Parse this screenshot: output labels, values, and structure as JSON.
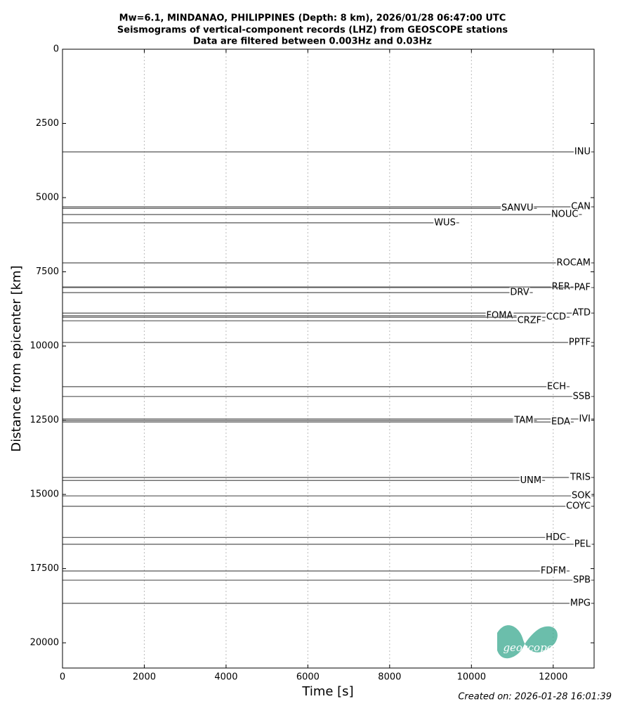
{
  "chart_data": {
    "type": "seismogram",
    "title": [
      "Mw=6.1, MINDANAO, PHILIPPINES (Depth: 8 km), 2026/01/28 06:47:00 UTC",
      "Seismograms of vertical-component records (LHZ) from GEOSCOPE stations",
      "Data are filtered between 0.003Hz and 0.03Hz"
    ],
    "xlabel": "Time [s]",
    "ylabel": "Distance from epicenter [km]",
    "xlim": [
      0,
      13000
    ],
    "ylim": [
      0,
      20850
    ],
    "y_inverted": true,
    "xticks": [
      0,
      2000,
      4000,
      6000,
      8000,
      10000,
      12000
    ],
    "yticks": [
      0,
      2500,
      5000,
      7500,
      10000,
      12500,
      15000,
      17500,
      20000
    ],
    "grid": true,
    "color": "#555555",
    "stations": [
      {
        "name": "INU",
        "distance": 3460,
        "t_end": 13000
      },
      {
        "name": "CAN",
        "distance": 5310,
        "t_end": 13000
      },
      {
        "name": "SANVU",
        "distance": 5360,
        "t_end": 11600
      },
      {
        "name": "NOUC",
        "distance": 5570,
        "t_end": 12700
      },
      {
        "name": "WUS",
        "distance": 5850,
        "t_end": 9700
      },
      {
        "name": "ROCAM",
        "distance": 7200,
        "t_end": 13000
      },
      {
        "name": "RER",
        "distance": 8010,
        "t_end": 12500
      },
      {
        "name": "PAF",
        "distance": 8030,
        "t_end": 13000
      },
      {
        "name": "DRV",
        "distance": 8200,
        "t_end": 11500
      },
      {
        "name": "ATD",
        "distance": 8890,
        "t_end": 13000
      },
      {
        "name": "FOMA",
        "distance": 8980,
        "t_end": 11100
      },
      {
        "name": "CCD",
        "distance": 9030,
        "t_end": 12400
      },
      {
        "name": "CRZF",
        "distance": 9150,
        "t_end": 11800
      },
      {
        "name": "PPTF",
        "distance": 9880,
        "t_end": 13000
      },
      {
        "name": "ECH",
        "distance": 11370,
        "t_end": 12400
      },
      {
        "name": "SSB",
        "distance": 11700,
        "t_end": 13000
      },
      {
        "name": "IVI",
        "distance": 12460,
        "t_end": 13000
      },
      {
        "name": "EDA",
        "distance": 12560,
        "t_end": 12500
      },
      {
        "name": "TAM",
        "distance": 12510,
        "t_end": 11600
      },
      {
        "name": "TRIS",
        "distance": 14430,
        "t_end": 13000
      },
      {
        "name": "UNM",
        "distance": 14530,
        "t_end": 11800
      },
      {
        "name": "SOK",
        "distance": 15050,
        "t_end": 13000
      },
      {
        "name": "COYC",
        "distance": 15400,
        "t_end": 13000
      },
      {
        "name": "HDC",
        "distance": 16450,
        "t_end": 12400
      },
      {
        "name": "PEL",
        "distance": 16680,
        "t_end": 13000
      },
      {
        "name": "FDFM",
        "distance": 17580,
        "t_end": 12400
      },
      {
        "name": "SPB",
        "distance": 17890,
        "t_end": 13000
      },
      {
        "name": "MPG",
        "distance": 18670,
        "t_end": 13000
      }
    ],
    "logo_text": "geoscope",
    "footer": "Created on: 2026-01-28 16:01:39"
  }
}
